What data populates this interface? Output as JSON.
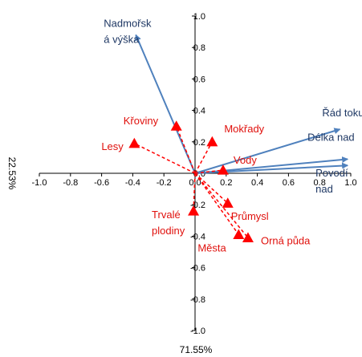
{
  "chart_data": {
    "type": "scatter",
    "title": "",
    "xlabel": "71.55%",
    "ylabel": "22.53%",
    "xlim": [
      -1.0,
      1.0
    ],
    "ylim": [
      -1.0,
      1.0
    ],
    "xticks": [
      "-1.0",
      "-0.8",
      "-0.6",
      "-0.4",
      "-0.2",
      "0.0",
      "0.2",
      "0.4",
      "0.6",
      "0.8",
      "1.0"
    ],
    "yticks": [
      "-1.0",
      "-0.8",
      "-0.6",
      "-0.4",
      "-0.2",
      "0.0",
      "0.2",
      "0.4",
      "0.6",
      "0.8",
      "1.0"
    ],
    "grid": false,
    "colors": {
      "vectors": "#4F81BD",
      "vector_labels": "#1F3864",
      "supplementary": "#FF0000",
      "axes": "#000000"
    },
    "vectors": [
      {
        "label": [
          "Nadmořsk",
          "á výška"
        ],
        "x": -0.38,
        "y": 0.88
      },
      {
        "label": [
          "Řád toku"
        ],
        "x": 0.93,
        "y": 0.28
      },
      {
        "label": [
          "Délka nad"
        ],
        "x": 0.98,
        "y": 0.09
      },
      {
        "label": [
          "Povodí",
          "nad"
        ],
        "x": 0.98,
        "y": 0.05
      }
    ],
    "points": [
      {
        "label": [
          "Křoviny"
        ],
        "x": -0.12,
        "y": 0.3
      },
      {
        "label": [
          "Mokřady"
        ],
        "x": 0.11,
        "y": 0.2
      },
      {
        "label": [
          "Lesy"
        ],
        "x": -0.39,
        "y": 0.19
      },
      {
        "label": [
          "Vody"
        ],
        "x": 0.18,
        "y": 0.02
      },
      {
        "label": [
          "Průmysl"
        ],
        "x": 0.21,
        "y": -0.19
      },
      {
        "label": [
          "Trvalé",
          "plodiny"
        ],
        "x": -0.01,
        "y": -0.24
      },
      {
        "label": [
          "Orná půda"
        ],
        "x": 0.34,
        "y": -0.41
      },
      {
        "label": [
          "Města"
        ],
        "x": 0.28,
        "y": -0.39
      }
    ]
  }
}
